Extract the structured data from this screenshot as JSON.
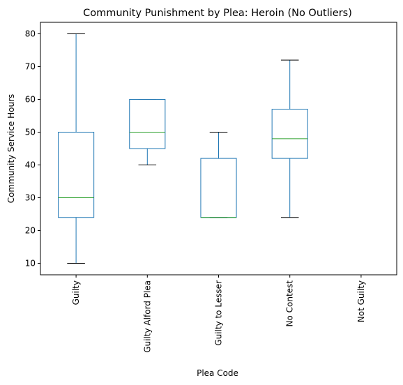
{
  "chart_data": {
    "type": "boxplot",
    "title": "Community Punishment by Plea: Heroin (No Outliers)",
    "xlabel": "Plea Code",
    "ylabel": "Community Service Hours",
    "ylim": [
      6.5,
      83.5
    ],
    "yticks": [
      10,
      20,
      30,
      40,
      50,
      60,
      70,
      80
    ],
    "categories": [
      "Guilty",
      "Guilty Alford Plea",
      "Guilty to Lesser",
      "No Contest",
      "Not Guilty"
    ],
    "boxes": [
      {
        "category": "Guilty",
        "whislo": 10,
        "q1": 24,
        "med": 30,
        "q3": 50,
        "whishi": 80
      },
      {
        "category": "Guilty Alford Plea",
        "whislo": 40,
        "q1": 45,
        "med": 50,
        "q3": 60,
        "whishi": 60
      },
      {
        "category": "Guilty to Lesser",
        "whislo": 24,
        "q1": 24,
        "med": 24,
        "q3": 42,
        "whishi": 50
      },
      {
        "category": "No Contest",
        "whislo": 24,
        "q1": 42,
        "med": 48,
        "q3": 57,
        "whishi": 72
      },
      {
        "category": "Not Guilty",
        "whislo": null,
        "q1": null,
        "med": null,
        "q3": null,
        "whishi": null
      }
    ],
    "colors": {
      "box": "#1f77b4",
      "median": "#2ca02c",
      "whisker_cap": "#000000"
    },
    "grid": false,
    "legend": "none"
  }
}
